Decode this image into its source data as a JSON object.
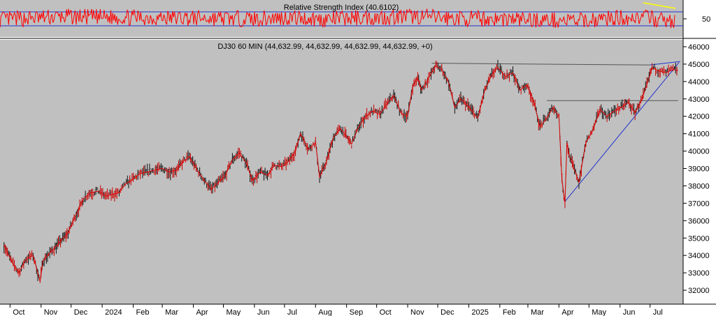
{
  "chart_data": [
    {
      "type": "line",
      "title": "Relative Strength Index (40.6102)",
      "ylabel": "",
      "y_ticks": [
        50
      ],
      "reference_lines": [
        {
          "name": "upper",
          "color": "#2233cc"
        },
        {
          "name": "lower",
          "color": "#2233cc"
        }
      ],
      "ylim": [
        0,
        100
      ],
      "series": [
        {
          "name": "",
          "color": "#ff0000",
          "x": [
            "Oct",
            "Nov",
            "Dec",
            "2024",
            "Feb",
            "Mar",
            "Apr",
            "May",
            "Jun",
            "Jul",
            "Aug",
            "Sep",
            "Oct",
            "Nov",
            "Dec",
            "2025",
            "Feb",
            "Mar",
            "Apr",
            "May",
            "Jun",
            "Jul"
          ],
          "values": [
            48,
            52,
            56,
            55,
            54,
            53,
            52,
            51,
            50,
            54,
            48,
            53,
            55,
            57,
            52,
            50,
            49,
            47,
            44,
            52,
            55,
            41
          ]
        }
      ],
      "annotations": [
        {
          "type": "trendline",
          "color": "#ffff00"
        }
      ]
    },
    {
      "type": "line",
      "title": "DJ30 60 MIN (44,632.99, 44,632.99, 44,632.99, 44,632.99, +0)",
      "ylim": [
        31200,
        46400
      ],
      "y_ticks": [
        32000,
        33000,
        34000,
        35000,
        36000,
        37000,
        38000,
        39000,
        40000,
        41000,
        42000,
        43000,
        44000,
        45000,
        46000
      ],
      "x_ticks": [
        "Oct",
        "Nov",
        "Dec",
        "2024",
        "Feb",
        "Mar",
        "Apr",
        "May",
        "Jun",
        "Jul",
        "Aug",
        "Sep",
        "Oct",
        "Nov",
        "Dec",
        "2025",
        "Feb",
        "Mar",
        "Apr",
        "May",
        "Jun",
        "Jul"
      ],
      "series": [
        {
          "name": "",
          "color": "#cc0000",
          "points": [
            [
              "2023-09-25",
              34600
            ],
            [
              "2023-10-03",
              33600
            ],
            [
              "2023-10-10",
              33000
            ],
            [
              "2023-10-17",
              33800
            ],
            [
              "2023-10-24",
              34000
            ],
            [
              "2023-10-31",
              32500
            ],
            [
              "2023-11-03",
              33700
            ],
            [
              "2023-11-14",
              34400
            ],
            [
              "2023-11-28",
              35300
            ],
            [
              "2023-12-04",
              36100
            ],
            [
              "2023-12-14",
              37300
            ],
            [
              "2023-12-20",
              37600
            ],
            [
              "2023-12-28",
              37700
            ],
            [
              "2024-01-05",
              37400
            ],
            [
              "2024-01-10",
              37500
            ],
            [
              "2024-01-18",
              37600
            ],
            [
              "2024-01-24",
              38100
            ],
            [
              "2024-02-01",
              38400
            ],
            [
              "2024-02-08",
              38700
            ],
            [
              "2024-02-15",
              38800
            ],
            [
              "2024-02-22",
              38900
            ],
            [
              "2024-03-01",
              39000
            ],
            [
              "2024-03-08",
              38800
            ],
            [
              "2024-03-15",
              38900
            ],
            [
              "2024-03-22",
              39400
            ],
            [
              "2024-03-28",
              39700
            ],
            [
              "2024-04-05",
              38900
            ],
            [
              "2024-04-12",
              38300
            ],
            [
              "2024-04-19",
              37800
            ],
            [
              "2024-04-26",
              38200
            ],
            [
              "2024-05-03",
              38600
            ],
            [
              "2024-05-10",
              39500
            ],
            [
              "2024-05-17",
              39900
            ],
            [
              "2024-05-24",
              39300
            ],
            [
              "2024-05-30",
              38300
            ],
            [
              "2024-06-07",
              38800
            ],
            [
              "2024-06-14",
              38600
            ],
            [
              "2024-06-21",
              39200
            ],
            [
              "2024-06-28",
              39100
            ],
            [
              "2024-07-05",
              39400
            ],
            [
              "2024-07-12",
              40000
            ],
            [
              "2024-07-17",
              41000
            ],
            [
              "2024-07-25",
              40100
            ],
            [
              "2024-08-01",
              40500
            ],
            [
              "2024-08-05",
              38500
            ],
            [
              "2024-08-12",
              39400
            ],
            [
              "2024-08-19",
              40800
            ],
            [
              "2024-08-26",
              41300
            ],
            [
              "2024-09-06",
              40400
            ],
            [
              "2024-09-13",
              41400
            ],
            [
              "2024-09-20",
              42000
            ],
            [
              "2024-09-27",
              42300
            ],
            [
              "2024-10-04",
              42100
            ],
            [
              "2024-10-11",
              42700
            ],
            [
              "2024-10-18",
              43200
            ],
            [
              "2024-10-25",
              42200
            ],
            [
              "2024-11-01",
              42000
            ],
            [
              "2024-11-06",
              43700
            ],
            [
              "2024-11-11",
              44200
            ],
            [
              "2024-11-15",
              43500
            ],
            [
              "2024-11-22",
              44200
            ],
            [
              "2024-11-29",
              44900
            ],
            [
              "2024-12-05",
              44700
            ],
            [
              "2024-12-12",
              43900
            ],
            [
              "2024-12-18",
              42500
            ],
            [
              "2024-12-24",
              43000
            ],
            [
              "2024-12-31",
              42600
            ],
            [
              "2025-01-10",
              41900
            ],
            [
              "2025-01-17",
              43500
            ],
            [
              "2025-01-24",
              44400
            ],
            [
              "2025-01-30",
              44800
            ],
            [
              "2025-02-07",
              44300
            ],
            [
              "2025-02-14",
              44500
            ],
            [
              "2025-02-21",
              43500
            ],
            [
              "2025-02-28",
              43800
            ],
            [
              "2025-03-07",
              42800
            ],
            [
              "2025-03-13",
              41400
            ],
            [
              "2025-03-20",
              41900
            ],
            [
              "2025-03-26",
              42500
            ],
            [
              "2025-04-01",
              42000
            ],
            [
              "2025-04-04",
              38300
            ],
            [
              "2025-04-07",
              37000
            ],
            [
              "2025-04-09",
              40500
            ],
            [
              "2025-04-11",
              39800
            ],
            [
              "2025-04-21",
              38200
            ],
            [
              "2025-04-28",
              40500
            ],
            [
              "2025-05-05",
              41200
            ],
            [
              "2025-05-12",
              42400
            ],
            [
              "2025-05-19",
              42000
            ],
            [
              "2025-05-26",
              42300
            ],
            [
              "2025-06-02",
              42500
            ],
            [
              "2025-06-09",
              42800
            ],
            [
              "2025-06-16",
              42200
            ],
            [
              "2025-06-23",
              43000
            ],
            [
              "2025-06-30",
              44200
            ],
            [
              "2025-07-03",
              44800
            ],
            [
              "2025-07-10",
              44600
            ],
            [
              "2025-07-17",
              44500
            ],
            [
              "2025-07-24",
              44700
            ],
            [
              "2025-07-29",
              44633
            ]
          ]
        }
      ],
      "annotations": [
        {
          "type": "trendline",
          "color": "#2233cc"
        },
        {
          "type": "horizontal_line",
          "color": "#555555"
        }
      ],
      "grid": false
    }
  ]
}
